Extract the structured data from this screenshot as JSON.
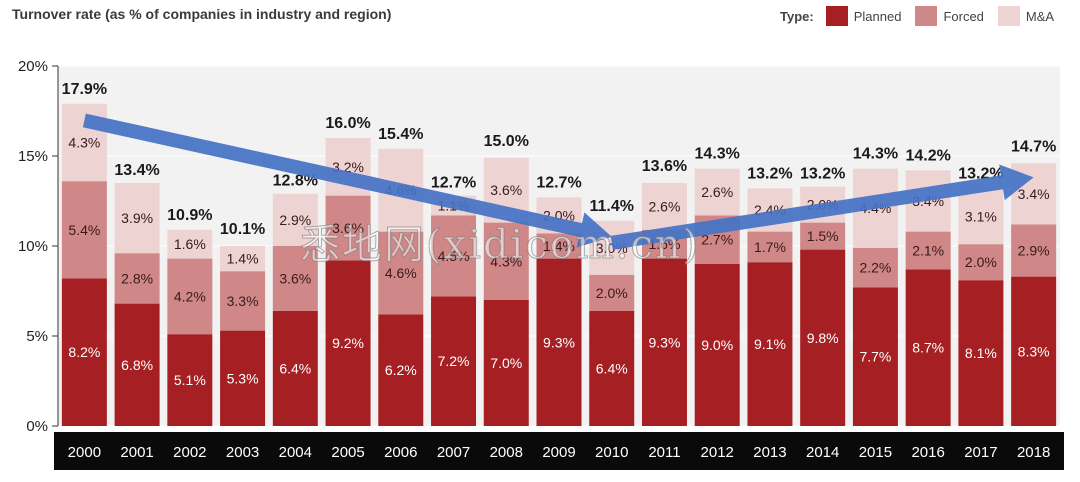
{
  "title": "Turnover rate (as % of companies in industry and region)",
  "legend": {
    "title": "Type:",
    "entries": [
      {
        "label": "Planned",
        "color": "#a61f22"
      },
      {
        "label": "Forced",
        "color": "#cf8787"
      },
      {
        "label": "M&A",
        "color": "#eed3d3"
      }
    ]
  },
  "watermark": "悉地网(xidicom.cn)",
  "chart_data": {
    "type": "bar",
    "stacked": true,
    "categories": [
      "2000",
      "2001",
      "2002",
      "2003",
      "2004",
      "2005",
      "2006",
      "2007",
      "2008",
      "2009",
      "2010",
      "2011",
      "2012",
      "2013",
      "2014",
      "2015",
      "2016",
      "2017",
      "2018"
    ],
    "series": [
      {
        "name": "Planned",
        "color": "#a61f22",
        "values": [
          8.2,
          6.8,
          5.1,
          5.3,
          6.4,
          9.2,
          6.2,
          7.2,
          7.0,
          9.3,
          6.4,
          9.3,
          9.0,
          9.1,
          9.8,
          7.7,
          8.7,
          8.1,
          8.3
        ]
      },
      {
        "name": "Forced",
        "color": "#cf8787",
        "values": [
          5.4,
          2.8,
          4.2,
          3.3,
          3.6,
          3.6,
          4.6,
          4.5,
          4.3,
          1.4,
          2.0,
          1.6,
          2.7,
          1.7,
          1.5,
          2.2,
          2.1,
          2.0,
          2.9
        ]
      },
      {
        "name": "M&A",
        "color": "#eed3d3",
        "values": [
          4.3,
          3.9,
          1.6,
          1.4,
          2.9,
          3.2,
          4.6,
          1.1,
          3.6,
          2.0,
          3.0,
          2.6,
          2.6,
          2.4,
          2.0,
          4.4,
          3.4,
          3.1,
          3.4
        ]
      }
    ],
    "segment_labels": [
      [
        "8.2%",
        "5.4%",
        "4.3%"
      ],
      [
        "6.8%",
        "2.8%",
        "3.9%"
      ],
      [
        "5.1%",
        "4.2%",
        "1.6%"
      ],
      [
        "5.3%",
        "3.3%",
        "1.4%"
      ],
      [
        "6.4%",
        "3.6%",
        "2.9%"
      ],
      [
        "9.2%",
        "3.6%",
        "3.2%"
      ],
      [
        "6.2%",
        "4.6%",
        "4.6%"
      ],
      [
        "7.2%",
        "4.5%",
        "1.1%"
      ],
      [
        "7.0%",
        "4.3%",
        "3.6%"
      ],
      [
        "9.3%",
        "1.4%",
        "2.0%"
      ],
      [
        "6.4%",
        "2.0%",
        "3.0%"
      ],
      [
        "9.3%",
        "1.6%",
        "2.6%"
      ],
      [
        "9.0%",
        "2.7%",
        "2.6%"
      ],
      [
        "9.1%",
        "1.7%",
        "2.4%"
      ],
      [
        "9.8%",
        "1.5%",
        "2.0%"
      ],
      [
        "7.7%",
        "2.2%",
        "4.4%"
      ],
      [
        "8.7%",
        "2.1%",
        "3.4%"
      ],
      [
        "8.1%",
        "2.0%",
        "3.1%"
      ],
      [
        "8.3%",
        "2.9%",
        "3.4%"
      ]
    ],
    "totals": [
      17.9,
      13.4,
      10.9,
      10.1,
      12.8,
      16.0,
      15.4,
      12.7,
      15.0,
      12.7,
      11.4,
      13.6,
      14.3,
      13.2,
      13.2,
      14.3,
      14.2,
      13.2,
      14.7
    ],
    "total_labels": [
      "17.9%",
      "13.4%",
      "10.9%",
      "10.1%",
      "12.8%",
      "16.0%",
      "15.4%",
      "12.7%",
      "15.0%",
      "12.7%",
      "11.4%",
      "13.6%",
      "14.3%",
      "13.2%",
      "13.2%",
      "14.3%",
      "14.2%",
      "13.2%",
      "14.7%"
    ],
    "ylim": [
      0,
      20
    ],
    "yticks": [
      "0%",
      "5%",
      "10%",
      "15%",
      "20%"
    ],
    "grid": true,
    "annotations": [
      {
        "type": "arrow",
        "from_category": "2000",
        "from_value": 18.2,
        "to_category": "2010",
        "to_value": 11.4,
        "color": "#4472c4"
      },
      {
        "type": "arrow",
        "from_category": "2010",
        "to_category": "2018",
        "from_value": 11.4,
        "to_value": 14.7,
        "color": "#4472c4"
      }
    ]
  }
}
